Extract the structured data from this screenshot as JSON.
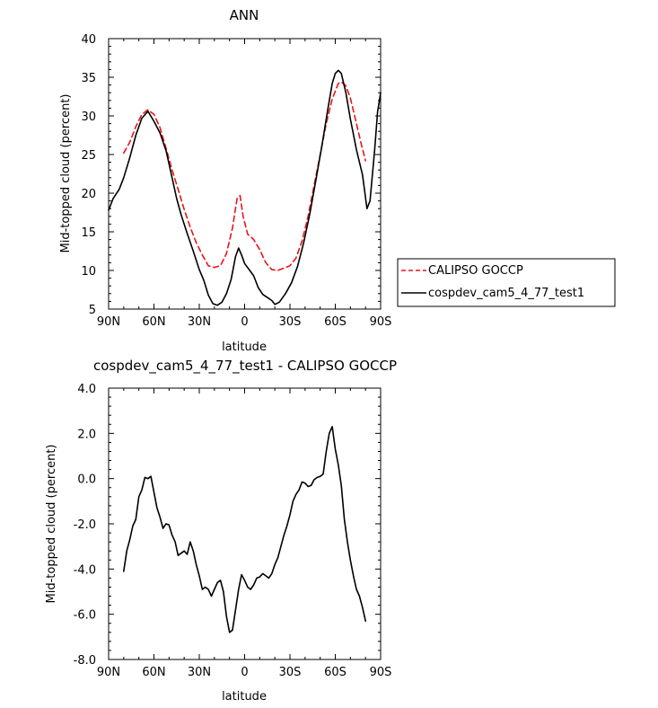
{
  "chart_data": [
    {
      "type": "line",
      "title": "ANN",
      "xlabel": "latitude",
      "ylabel": "Mid-topped cloud (percent)",
      "xlim": [
        -90,
        90
      ],
      "ylim": [
        5,
        40
      ],
      "xticks": [
        -90,
        -60,
        -30,
        0,
        30,
        60,
        90
      ],
      "xtick_labels": [
        "90N",
        "60N",
        "30N",
        "0",
        "30S",
        "60S",
        "90S"
      ],
      "yticks": [
        5,
        10,
        15,
        20,
        25,
        30,
        35,
        40
      ],
      "ytick_labels": [
        "5",
        "10",
        "15",
        "20",
        "25",
        "30",
        "35",
        "40"
      ],
      "grid": false,
      "legend_position": "right",
      "series": [
        {
          "name": "CALIPSO GOCCP",
          "color": "#e8141a",
          "dash": "dashed",
          "points": [
            [
              -80,
              25.2
            ],
            [
              -76,
              26.6
            ],
            [
              -72,
              28.6
            ],
            [
              -68,
              30.2
            ],
            [
              -64,
              30.8
            ],
            [
              -60,
              30.2
            ],
            [
              -56,
              28.5
            ],
            [
              -52,
              25.8
            ],
            [
              -48,
              23.0
            ],
            [
              -44,
              20.5
            ],
            [
              -40,
              17.9
            ],
            [
              -36,
              15.6
            ],
            [
              -32,
              13.6
            ],
            [
              -28,
              12.0
            ],
            [
              -24,
              10.6
            ],
            [
              -20,
              10.4
            ],
            [
              -16,
              10.6
            ],
            [
              -12,
              12.2
            ],
            [
              -8,
              15.5
            ],
            [
              -5,
              19.3
            ],
            [
              -3,
              19.7
            ],
            [
              -1,
              17.0
            ],
            [
              2,
              14.7
            ],
            [
              6,
              14.0
            ],
            [
              10,
              12.7
            ],
            [
              14,
              11.0
            ],
            [
              18,
              10.1
            ],
            [
              22,
              10.0
            ],
            [
              26,
              10.3
            ],
            [
              30,
              10.6
            ],
            [
              34,
              11.6
            ],
            [
              38,
              13.8
            ],
            [
              42,
              17.0
            ],
            [
              46,
              21.0
            ],
            [
              50,
              25.0
            ],
            [
              54,
              29.0
            ],
            [
              58,
              32.2
            ],
            [
              62,
              34.2
            ],
            [
              64,
              34.4
            ],
            [
              67,
              33.9
            ],
            [
              70,
              32.3
            ],
            [
              74,
              29.0
            ],
            [
              77,
              26.5
            ],
            [
              80,
              24.2
            ]
          ]
        },
        {
          "name": "cospdev_cam5_4_77_test1",
          "color": "#000000",
          "dash": "solid",
          "points": [
            [
              -90,
              17.8
            ],
            [
              -87,
              19.3
            ],
            [
              -83,
              20.5
            ],
            [
              -80,
              22.0
            ],
            [
              -76,
              24.6
            ],
            [
              -72,
              27.5
            ],
            [
              -68,
              29.7
            ],
            [
              -64,
              30.6
            ],
            [
              -60,
              29.3
            ],
            [
              -56,
              27.8
            ],
            [
              -52,
              25.5
            ],
            [
              -48,
              22.0
            ],
            [
              -45,
              19.3
            ],
            [
              -42,
              17.2
            ],
            [
              -38,
              14.8
            ],
            [
              -34,
              12.5
            ],
            [
              -30,
              10.1
            ],
            [
              -27,
              8.7
            ],
            [
              -24,
              6.8
            ],
            [
              -21,
              5.7
            ],
            [
              -18,
              5.5
            ],
            [
              -15,
              5.9
            ],
            [
              -12,
              7.0
            ],
            [
              -9,
              8.8
            ],
            [
              -6,
              11.8
            ],
            [
              -4,
              12.9
            ],
            [
              -2,
              12.0
            ],
            [
              0,
              10.9
            ],
            [
              3,
              10.1
            ],
            [
              6,
              9.3
            ],
            [
              9,
              7.8
            ],
            [
              12,
              6.9
            ],
            [
              15,
              6.5
            ],
            [
              18,
              6.1
            ],
            [
              20,
              5.6
            ],
            [
              23,
              5.9
            ],
            [
              27,
              7.0
            ],
            [
              31,
              8.4
            ],
            [
              35,
              10.5
            ],
            [
              39,
              13.5
            ],
            [
              43,
              17.2
            ],
            [
              47,
              21.5
            ],
            [
              51,
              26.0
            ],
            [
              55,
              30.8
            ],
            [
              58,
              34.2
            ],
            [
              60,
              35.5
            ],
            [
              62,
              35.9
            ],
            [
              64,
              35.5
            ],
            [
              67,
              33.0
            ],
            [
              70,
              29.6
            ],
            [
              74,
              25.6
            ],
            [
              78,
              22.4
            ],
            [
              81,
              18.0
            ],
            [
              83,
              19.0
            ],
            [
              86,
              25.5
            ],
            [
              88,
              30.5
            ],
            [
              90,
              33.0
            ]
          ]
        }
      ]
    },
    {
      "type": "line",
      "title": "cospdev_cam5_4_77_test1 - CALIPSO GOCCP",
      "xlabel": "latitude",
      "ylabel": "Mid-topped cloud (percent)",
      "xlim": [
        -90,
        90
      ],
      "ylim": [
        -8,
        4
      ],
      "xticks": [
        -90,
        -60,
        -30,
        0,
        30,
        60,
        90
      ],
      "xtick_labels": [
        "90N",
        "60N",
        "30N",
        "0",
        "30S",
        "60S",
        "90S"
      ],
      "yticks": [
        -8,
        -6,
        -4,
        -2,
        0,
        2,
        4
      ],
      "ytick_labels": [
        "-8.0",
        "-6.0",
        "-4.0",
        "-2.0",
        "0.0",
        "2.0",
        "4.0"
      ],
      "grid": false,
      "series": [
        {
          "color": "#000000",
          "dash": "solid",
          "points": [
            [
              -80,
              -4.1
            ],
            [
              -78,
              -3.2
            ],
            [
              -76,
              -2.7
            ],
            [
              -74,
              -2.1
            ],
            [
              -72,
              -1.8
            ],
            [
              -70,
              -0.8
            ],
            [
              -68,
              -0.5
            ],
            [
              -66,
              0.05
            ],
            [
              -64,
              0.0
            ],
            [
              -62,
              0.1
            ],
            [
              -60,
              -0.6
            ],
            [
              -58,
              -1.3
            ],
            [
              -56,
              -1.7
            ],
            [
              -54,
              -2.2
            ],
            [
              -52,
              -2.0
            ],
            [
              -50,
              -2.05
            ],
            [
              -48,
              -2.5
            ],
            [
              -46,
              -2.8
            ],
            [
              -44,
              -3.4
            ],
            [
              -42,
              -3.3
            ],
            [
              -40,
              -3.2
            ],
            [
              -38,
              -3.35
            ],
            [
              -36,
              -2.8
            ],
            [
              -34,
              -3.2
            ],
            [
              -32,
              -3.8
            ],
            [
              -30,
              -4.3
            ],
            [
              -28,
              -4.9
            ],
            [
              -26,
              -4.8
            ],
            [
              -24,
              -4.9
            ],
            [
              -22,
              -5.2
            ],
            [
              -20,
              -4.9
            ],
            [
              -18,
              -4.6
            ],
            [
              -16,
              -4.5
            ],
            [
              -14,
              -5.0
            ],
            [
              -12,
              -6.1
            ],
            [
              -10,
              -6.8
            ],
            [
              -8,
              -6.7
            ],
            [
              -6,
              -5.8
            ],
            [
              -4,
              -4.9
            ],
            [
              -2,
              -4.25
            ],
            [
              0,
              -4.5
            ],
            [
              2,
              -4.8
            ],
            [
              4,
              -4.9
            ],
            [
              6,
              -4.7
            ],
            [
              8,
              -4.4
            ],
            [
              10,
              -4.35
            ],
            [
              12,
              -4.2
            ],
            [
              14,
              -4.3
            ],
            [
              16,
              -4.4
            ],
            [
              18,
              -4.2
            ],
            [
              20,
              -3.8
            ],
            [
              22,
              -3.5
            ],
            [
              24,
              -3.0
            ],
            [
              26,
              -2.5
            ],
            [
              28,
              -2.1
            ],
            [
              30,
              -1.6
            ],
            [
              32,
              -1.0
            ],
            [
              34,
              -0.7
            ],
            [
              36,
              -0.5
            ],
            [
              38,
              -0.15
            ],
            [
              40,
              -0.2
            ],
            [
              42,
              -0.35
            ],
            [
              44,
              -0.3
            ],
            [
              46,
              -0.05
            ],
            [
              48,
              0.05
            ],
            [
              50,
              0.1
            ],
            [
              52,
              0.2
            ],
            [
              54,
              1.2
            ],
            [
              56,
              2.0
            ],
            [
              58,
              2.3
            ],
            [
              60,
              1.3
            ],
            [
              62,
              0.6
            ],
            [
              64,
              -0.3
            ],
            [
              66,
              -1.8
            ],
            [
              68,
              -2.8
            ],
            [
              70,
              -3.6
            ],
            [
              72,
              -4.3
            ],
            [
              74,
              -4.9
            ],
            [
              76,
              -5.2
            ],
            [
              78,
              -5.7
            ],
            [
              80,
              -6.3
            ]
          ]
        }
      ]
    }
  ]
}
